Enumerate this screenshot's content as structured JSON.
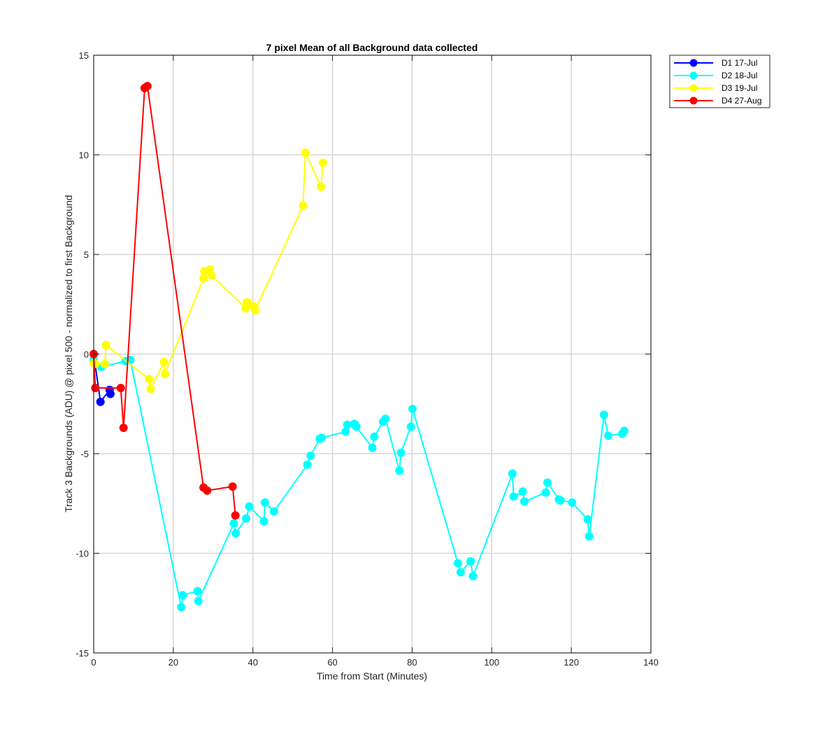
{
  "chart_data": {
    "type": "line",
    "title": "7 pixel Mean of all Background data collected",
    "xlabel": "Time from Start (Minutes)",
    "ylabel": "Track 3 Backgrounds (ADU) @ pixel 500 - normalized to first Background",
    "xlim": [
      0,
      140
    ],
    "ylim": [
      -15,
      15
    ],
    "xticks": [
      0,
      20,
      40,
      60,
      80,
      100,
      120,
      140
    ],
    "yticks": [
      -15,
      -10,
      -5,
      0,
      5,
      10,
      15
    ],
    "xtick_labels": [
      "0",
      "20",
      "40",
      "60",
      "80",
      "100",
      "120",
      "140"
    ],
    "ytick_labels": [
      "-15",
      "-10",
      "-5",
      "0",
      "5",
      "10",
      "15"
    ],
    "grid": true,
    "legend_position": "outside-top-right",
    "series": [
      {
        "name": "D1 17-Jul",
        "color": "#0000ff",
        "x": [
          0,
          1.7,
          4.0,
          4.2
        ],
        "y": [
          0,
          -2.4,
          -1.8,
          -2.0
        ]
      },
      {
        "name": "D2 18-Jul",
        "color": "#00ffff",
        "x": [
          0,
          1.9,
          8.0,
          9.2,
          22.0,
          22.4,
          26.1,
          26.3,
          35.2,
          35.7,
          38.3,
          39.1,
          42.8,
          43.0,
          45.3,
          53.7,
          54.5,
          56.8,
          57.3,
          63.3,
          63.7,
          65.5,
          66.0,
          70.0,
          70.5,
          72.7,
          73.3,
          76.8,
          77.2,
          79.7,
          80.1,
          91.5,
          92.2,
          94.7,
          95.3,
          105.2,
          105.5,
          107.8,
          108.2,
          113.6,
          114.0,
          116.9,
          117.3,
          120.2,
          124.1,
          124.5,
          128.2,
          129.3,
          132.8,
          133.3
        ],
        "y": [
          -0.3,
          -0.65,
          -0.35,
          -0.3,
          -12.7,
          -12.1,
          -11.9,
          -12.4,
          -8.5,
          -9.0,
          -8.25,
          -7.65,
          -8.4,
          -7.45,
          -7.9,
          -5.55,
          -5.1,
          -4.25,
          -4.2,
          -3.9,
          -3.55,
          -3.5,
          -3.65,
          -4.7,
          -4.15,
          -3.4,
          -3.25,
          -5.85,
          -4.95,
          -3.65,
          -2.75,
          -10.5,
          -10.95,
          -10.4,
          -11.15,
          -6.0,
          -7.15,
          -6.9,
          -7.4,
          -6.95,
          -6.45,
          -7.3,
          -7.35,
          -7.45,
          -8.3,
          -9.15,
          -3.05,
          -4.1,
          -4.0,
          -3.85
        ]
      },
      {
        "name": "D3 19-Jul",
        "color": "#ffff00",
        "x": [
          0,
          0.4,
          2.8,
          3.1,
          13.9,
          14.3,
          17.7,
          17.9,
          27.6,
          27.8,
          29.2,
          29.6,
          38.2,
          38.5,
          40.2,
          40.6,
          52.6,
          53.2,
          57.1,
          57.6
        ],
        "y": [
          -0.45,
          -0.5,
          -0.5,
          0.45,
          -1.25,
          -1.75,
          -0.4,
          -1.0,
          3.8,
          4.15,
          4.25,
          3.95,
          2.3,
          2.6,
          2.4,
          2.2,
          7.45,
          10.1,
          8.4,
          9.6
        ]
      },
      {
        "name": "D4 27-Aug",
        "color": "#ff0000",
        "x": [
          0,
          0.4,
          6.8,
          7.5,
          12.8,
          13.5,
          27.6,
          28.5,
          34.9,
          35.6
        ],
        "y": [
          0,
          -1.7,
          -1.7,
          -3.7,
          13.35,
          13.45,
          -6.7,
          -6.85,
          -6.65,
          -8.1
        ]
      }
    ]
  }
}
